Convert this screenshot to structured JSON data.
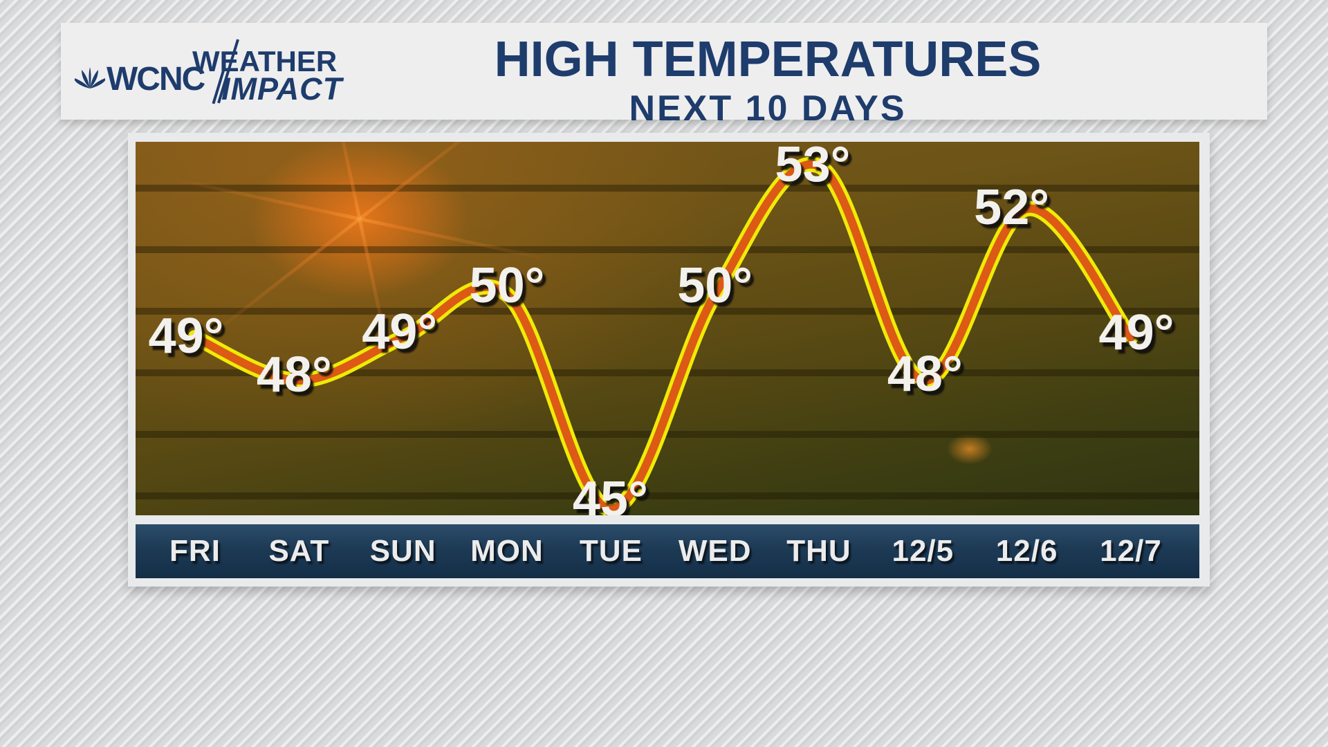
{
  "header": {
    "station": "WCNC",
    "brand_line1": "WEATHER",
    "brand_line2": "IMPACT",
    "title": "HIGH TEMPERATURES",
    "subtitle": "NEXT 10 DAYS"
  },
  "chart_data": {
    "type": "line",
    "title": "HIGH TEMPERATURES",
    "subtitle": "NEXT 10 DAYS",
    "categories": [
      "FRI",
      "SAT",
      "SUN",
      "MON",
      "TUE",
      "WED",
      "THU",
      "12/5",
      "12/6",
      "12/7"
    ],
    "values": [
      49,
      48,
      49,
      50,
      45,
      50,
      53,
      48,
      52,
      49
    ],
    "unit": "°",
    "ylim": [
      44,
      54
    ],
    "grid": "horizontal-dark-bands",
    "legend": "none",
    "line_core_color": "#dc5a16",
    "line_edge_color": "#efeb07",
    "point_label_color": "#f3f1ee",
    "axis_bar_color": "#1d3a55",
    "axis_label_color": "#ececec",
    "plot_background": "olive-amber-gradient-with-lens-flare",
    "accent_navy": "#1e3c6c"
  }
}
